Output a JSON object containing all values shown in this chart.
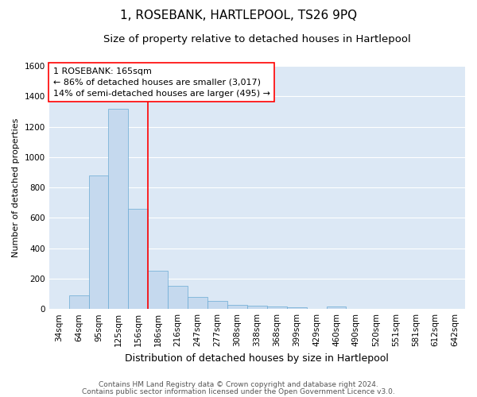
{
  "title": "1, ROSEBANK, HARTLEPOOL, TS26 9PQ",
  "subtitle": "Size of property relative to detached houses in Hartlepool",
  "xlabel": "Distribution of detached houses by size in Hartlepool",
  "ylabel": "Number of detached properties",
  "footnote1": "Contains HM Land Registry data © Crown copyright and database right 2024.",
  "footnote2": "Contains public sector information licensed under the Open Government Licence v3.0.",
  "bar_labels": [
    "34sqm",
    "64sqm",
    "95sqm",
    "125sqm",
    "156sqm",
    "186sqm",
    "216sqm",
    "247sqm",
    "277sqm",
    "308sqm",
    "338sqm",
    "368sqm",
    "399sqm",
    "429sqm",
    "460sqm",
    "490sqm",
    "520sqm",
    "551sqm",
    "581sqm",
    "612sqm",
    "642sqm"
  ],
  "bar_values": [
    0,
    88,
    880,
    1320,
    660,
    250,
    150,
    80,
    55,
    25,
    20,
    15,
    10,
    0,
    15,
    0,
    0,
    0,
    0,
    0,
    0
  ],
  "bar_color": "#c5d9ee",
  "bar_edgecolor": "#6aaad4",
  "red_line_x": 4.5,
  "red_line_label": "1 ROSEBANK: 165sqm",
  "annotation_line1": "← 86% of detached houses are smaller (3,017)",
  "annotation_line2": "14% of semi-detached houses are larger (495) →",
  "ylim": [
    0,
    1600
  ],
  "yticks": [
    0,
    200,
    400,
    600,
    800,
    1000,
    1200,
    1400,
    1600
  ],
  "plot_background": "#dce8f5",
  "grid_color": "white",
  "title_fontsize": 11,
  "subtitle_fontsize": 9.5,
  "xlabel_fontsize": 9,
  "ylabel_fontsize": 8,
  "tick_fontsize": 7.5,
  "annotation_fontsize": 8,
  "footnote_fontsize": 6.5
}
